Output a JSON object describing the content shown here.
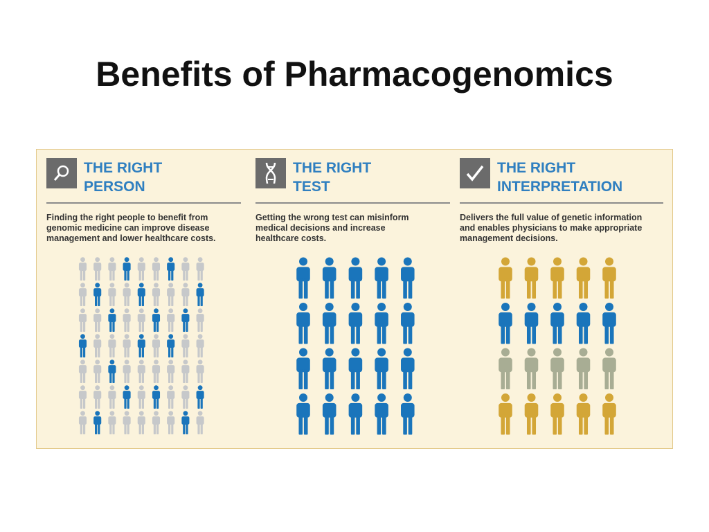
{
  "title": "Benefits of Pharmacogenomics",
  "panels": [
    {
      "heading": [
        "THE RIGHT",
        "PERSON"
      ],
      "description": [
        "Finding the right people to benefit from",
        "genomic medicine can improve disease",
        "management and lower healthcare costs."
      ]
    },
    {
      "heading": [
        "THE RIGHT",
        "TEST"
      ],
      "description": [
        "Getting the wrong test can misinform",
        "medical decisions and increase",
        "healthcare costs."
      ]
    },
    {
      "heading": [
        "THE RIGHT",
        "INTERPRETATION"
      ],
      "description": [
        "Delivers the full value of genetic information",
        "and enables physicians to make appropriate",
        "management decisions."
      ]
    }
  ]
}
